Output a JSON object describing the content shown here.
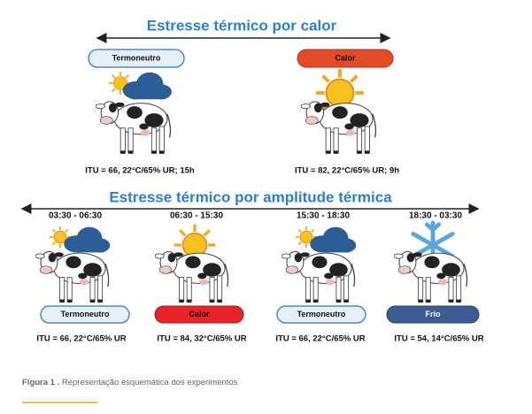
{
  "section1": {
    "title": "Estresse térmico por calor",
    "panels": [
      {
        "badge": "Termoneutro",
        "caption": "ITU = 66, 22°C/65% UR; 15h"
      },
      {
        "badge": "Calor",
        "caption": "ITU = 82, 22°C/65% UR; 9h"
      }
    ]
  },
  "section2": {
    "title": "Estresse térmico por amplitude térmica",
    "panels": [
      {
        "time": "03:30 - 06:30",
        "badge": "Termoneutro",
        "caption": "ITU = 66, 22°C/65% UR"
      },
      {
        "time": "06:30 - 15:30",
        "badge": "Calor",
        "caption": "ITU = 84, 32°C/65% UR"
      },
      {
        "time": "15:30 - 18:30",
        "badge": "Termoneutro",
        "caption": "ITU = 66, 22°C/65% UR"
      },
      {
        "time": "18:30 - 03:30",
        "badge": "Frio",
        "caption": "ITU = 54, 14°C/65% UR"
      }
    ]
  },
  "figure_caption": {
    "label": "Figura 1 .",
    "text": "Representação esquemática dos experimentos"
  }
}
